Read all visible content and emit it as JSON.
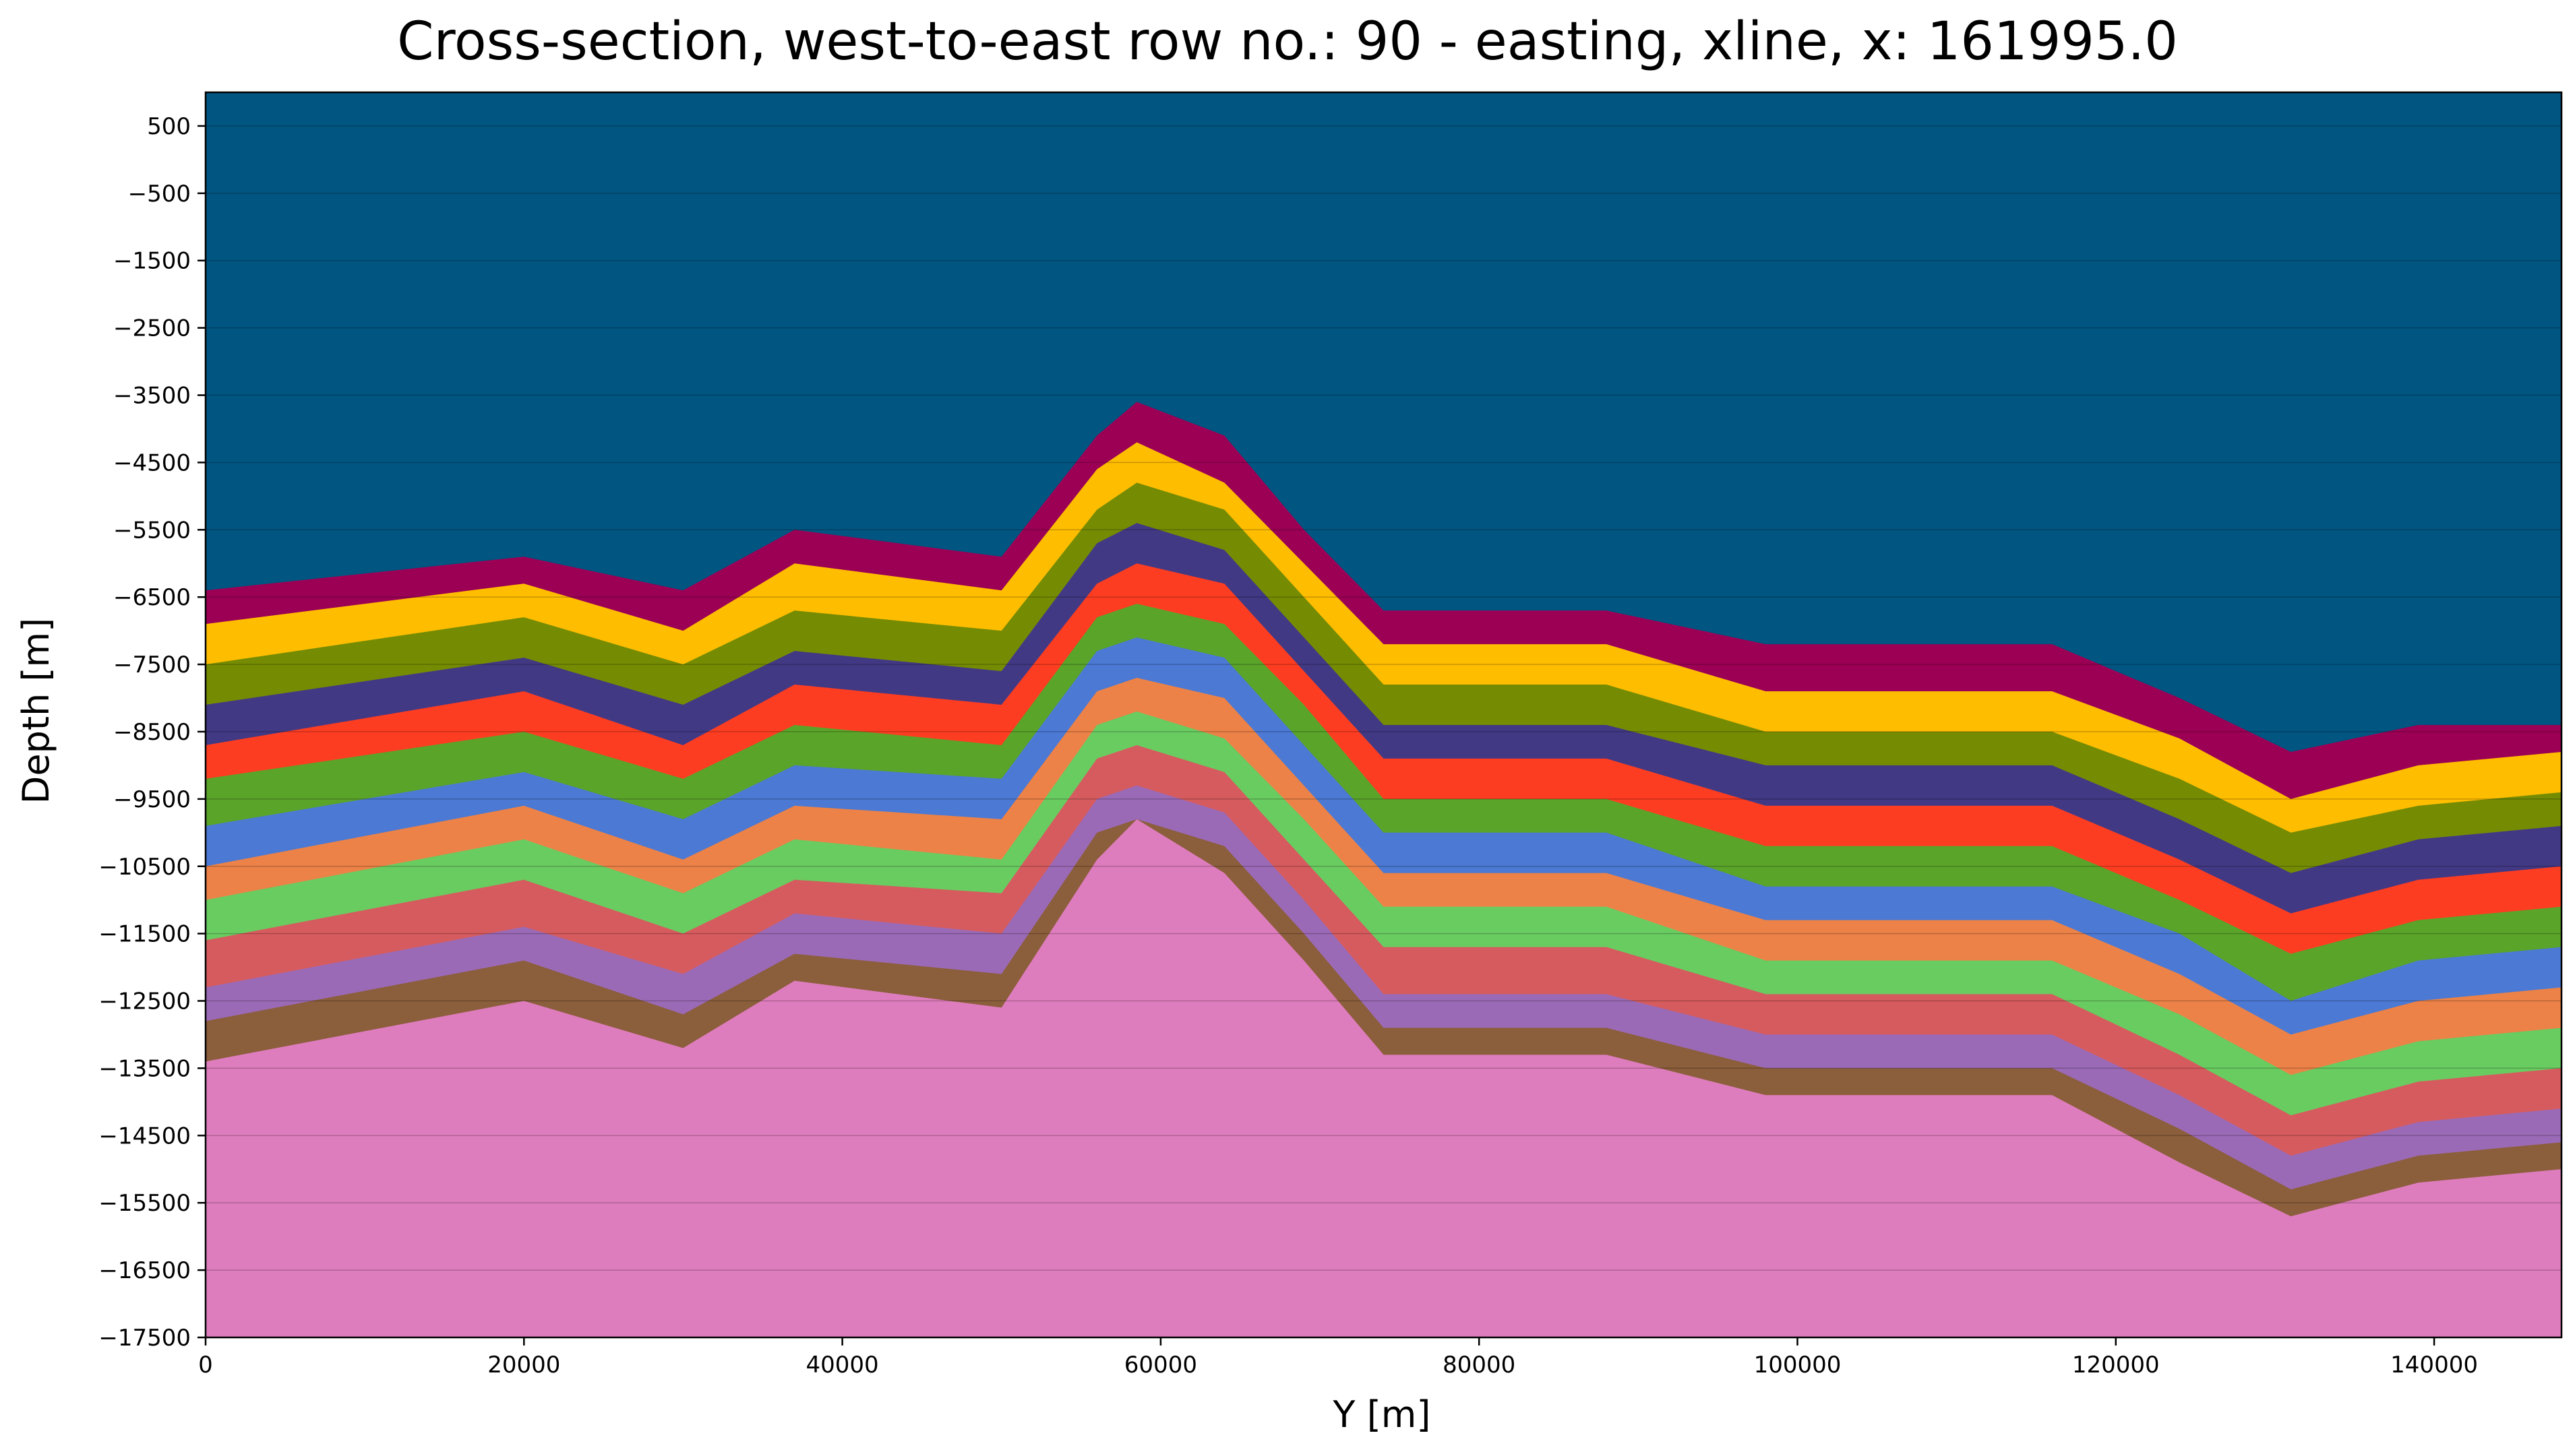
{
  "chart_data": {
    "type": "area",
    "title": "Cross-section, west-to-east row no.: 90 - easting, xline, x: 161995.0",
    "xlabel": "Y [m]",
    "ylabel": "Depth [m]",
    "xlim": [
      0,
      148000
    ],
    "ylim": [
      -17500,
      1000
    ],
    "x_ticks": [
      0,
      20000,
      40000,
      60000,
      80000,
      100000,
      120000,
      140000
    ],
    "x_tick_labels": [
      "0",
      "20000",
      "40000",
      "60000",
      "80000",
      "100000",
      "120000",
      "140000"
    ],
    "y_ticks": [
      500,
      -500,
      -1500,
      -2500,
      -3500,
      -4500,
      -5500,
      -6500,
      -7500,
      -8500,
      -9500,
      -10500,
      -11500,
      -12500,
      -13500,
      -14500,
      -15500,
      -16500,
      -17500
    ],
    "y_tick_labels": [
      "500",
      "−500",
      "−1500",
      "−2500",
      "−3500",
      "−4500",
      "−5500",
      "−6500",
      "−7500",
      "−8500",
      "−9500",
      "−10500",
      "−11500",
      "−12500",
      "−13500",
      "−14500",
      "−15500",
      "−16500",
      "−17500"
    ],
    "grid": true,
    "background_color": "#005581",
    "x": [
      0,
      20000,
      30000,
      37000,
      50000,
      56000,
      58500,
      64000,
      69000,
      74000,
      88000,
      98000,
      116000,
      124000,
      131000,
      139000,
      148000
    ],
    "series": [
      {
        "color": "#9c0055",
        "values": [
          -6400,
          -5900,
          -6400,
          -5500,
          -5900,
          -4100,
          -3600,
          -4100,
          -5500,
          -6700,
          -6700,
          -7200,
          -7200,
          -8000,
          -8800,
          -8400,
          -8400
        ]
      },
      {
        "color": "#ffbd00",
        "values": [
          -6900,
          -6300,
          -7000,
          -6000,
          -6400,
          -4600,
          -4200,
          -4800,
          -6000,
          -7200,
          -7200,
          -7900,
          -7900,
          -8600,
          -9500,
          -9000,
          -8800
        ]
      },
      {
        "color": "#758c02",
        "values": [
          -7500,
          -6800,
          -7500,
          -6700,
          -7000,
          -5200,
          -4800,
          -5200,
          -6500,
          -7800,
          -7800,
          -8500,
          -8500,
          -9200,
          -10000,
          -9600,
          -9400
        ]
      },
      {
        "color": "#423984",
        "values": [
          -8100,
          -7400,
          -8100,
          -7300,
          -7600,
          -5700,
          -5400,
          -5800,
          -7100,
          -8400,
          -8400,
          -9000,
          -9000,
          -9800,
          -10600,
          -10100,
          -9900
        ]
      },
      {
        "color": "#fd3d21",
        "values": [
          -8700,
          -7900,
          -8700,
          -7800,
          -8100,
          -6300,
          -6000,
          -6300,
          -7600,
          -8900,
          -8900,
          -9600,
          -9600,
          -10400,
          -11200,
          -10700,
          -10500
        ]
      },
      {
        "color": "#5aa42a",
        "values": [
          -9200,
          -8500,
          -9200,
          -8400,
          -8700,
          -6800,
          -6600,
          -6900,
          -8100,
          -9500,
          -9500,
          -10200,
          -10200,
          -11000,
          -11800,
          -11300,
          -11100
        ]
      },
      {
        "color": "#4b79d4",
        "values": [
          -9900,
          -9100,
          -9800,
          -9000,
          -9200,
          -7300,
          -7100,
          -7400,
          -8700,
          -10000,
          -10000,
          -10800,
          -10800,
          -11500,
          -12500,
          -11900,
          -11700
        ]
      },
      {
        "color": "#ec8247",
        "values": [
          -10500,
          -9600,
          -10400,
          -9600,
          -9800,
          -7900,
          -7700,
          -8000,
          -9300,
          -10600,
          -10600,
          -11300,
          -11300,
          -12100,
          -13000,
          -12500,
          -12300
        ]
      },
      {
        "color": "#69cc61",
        "values": [
          -11000,
          -10100,
          -10900,
          -10100,
          -10400,
          -8400,
          -8200,
          -8600,
          -9800,
          -11100,
          -11100,
          -11900,
          -11900,
          -12700,
          -13600,
          -13100,
          -12900
        ]
      },
      {
        "color": "#d65b5e",
        "values": [
          -11600,
          -10700,
          -11500,
          -10700,
          -10900,
          -8900,
          -8700,
          -9100,
          -10400,
          -11700,
          -11700,
          -12400,
          -12400,
          -13300,
          -14200,
          -13700,
          -13500
        ]
      },
      {
        "color": "#9b6ab7",
        "values": [
          -12300,
          -11400,
          -12100,
          -11200,
          -11500,
          -9500,
          -9300,
          -9700,
          -11000,
          -12400,
          -12400,
          -13000,
          -13000,
          -13900,
          -14800,
          -14300,
          -14100
        ]
      },
      {
        "color": "#8b5e3c",
        "values": [
          -12800,
          -11900,
          -12700,
          -11800,
          -12100,
          -10000,
          -9800,
          -10200,
          -11500,
          -12900,
          -12900,
          -13500,
          -13500,
          -14400,
          -15300,
          -14800,
          -14600
        ]
      },
      {
        "color": "#de7dbd",
        "values": [
          -13400,
          -12500,
          -13200,
          -12200,
          -12600,
          -10400,
          -9800,
          -10600,
          -11900,
          -13300,
          -13300,
          -13900,
          -13900,
          -14900,
          -15700,
          -15200,
          -15000
        ]
      }
    ]
  }
}
